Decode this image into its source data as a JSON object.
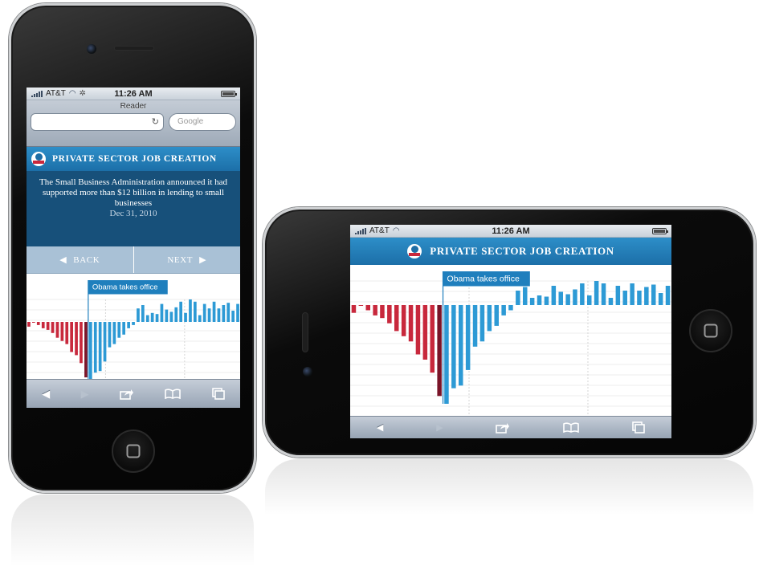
{
  "status": {
    "carrier": "AT&T",
    "time": "11:26 AM"
  },
  "browser": {
    "reader_label": "Reader",
    "url_value": "",
    "search_placeholder": "Google"
  },
  "article": {
    "title": "PRIVATE SECTOR JOB CREATION",
    "caption": "The Small Business Administration announced it had supported more than $12 billion in lending to small businesses",
    "date": "Dec 31, 2010",
    "back_label": "BACK",
    "next_label": "NEXT"
  },
  "toolbar": {
    "back_icon": "◀",
    "forward_icon": "▶",
    "share_icon": "share-icon",
    "bookmarks_icon": "bookmarks-icon",
    "pages_icon": "pages-icon"
  },
  "colors": {
    "negative": "#c8283c",
    "positive": "#2d9ad5",
    "highlight_negative": "#7a1428",
    "banner": "#1f7fbd"
  },
  "chart_data": {
    "type": "bar",
    "annotation": "Obama takes office",
    "annotation_index": 13,
    "highlight_index": 12,
    "values": [
      -60,
      -5,
      -40,
      -80,
      -100,
      -140,
      -200,
      -240,
      -280,
      -380,
      -420,
      -520,
      -700,
      -760,
      -640,
      -620,
      -500,
      -320,
      -280,
      -200,
      -160,
      -80,
      -40,
      120,
      150,
      60,
      80,
      70,
      160,
      110,
      90,
      130,
      180,
      80,
      200,
      180,
      60,
      160,
      120,
      180,
      120,
      150,
      170,
      100,
      160
    ],
    "grid": true,
    "title": "",
    "xlabel": "",
    "ylabel": ""
  }
}
